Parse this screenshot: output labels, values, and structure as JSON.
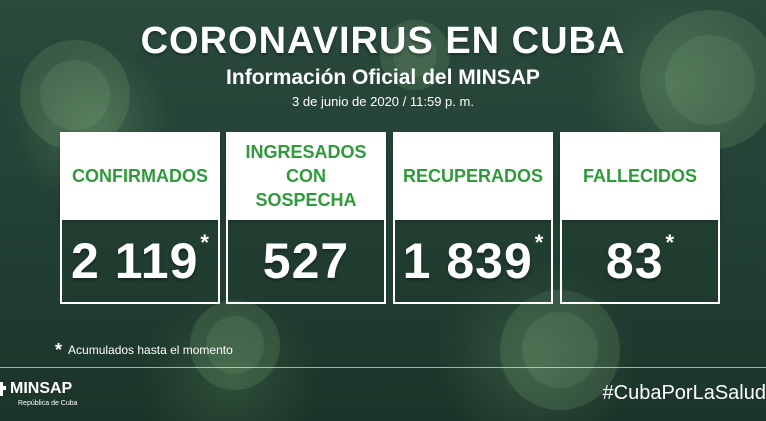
{
  "header": {
    "title": "CORONAVIRUS EN CUBA",
    "subtitle": "Información Oficial del MINSAP",
    "date": "3 de junio de 2020 / 11:59 p. m."
  },
  "cards": [
    {
      "label": "CONFIRMADOS",
      "value": "2 119",
      "asterisk": "*"
    },
    {
      "label": "INGRESADOS CON SOSPECHA",
      "value": "527",
      "asterisk": ""
    },
    {
      "label": "RECUPERADOS",
      "value": "1 839",
      "asterisk": "*"
    },
    {
      "label": "FALLECIDOS",
      "value": "83",
      "asterisk": "*"
    }
  ],
  "footnote": {
    "star": "*",
    "text": "Acumulados hasta el momento"
  },
  "footer": {
    "logo_name": "MINSAP",
    "logo_sub": "República de Cuba",
    "hashtag": "#CubaPorLaSalud"
  },
  "colors": {
    "accent_green": "#2f9a3b",
    "background": "#223f33",
    "text": "#ffffff"
  }
}
